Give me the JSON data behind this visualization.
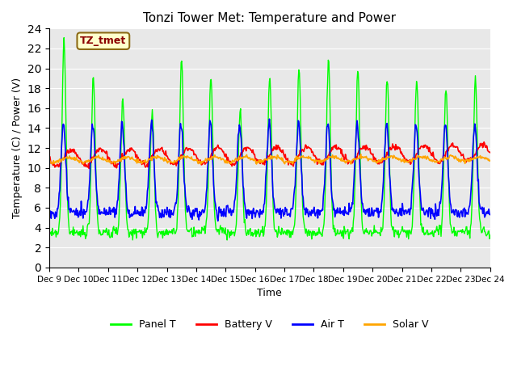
{
  "title": "Tonzi Tower Met: Temperature and Power",
  "xlabel": "Time",
  "ylabel": "Temperature (C) / Power (V)",
  "ylim": [
    0,
    24
  ],
  "yticks": [
    0,
    2,
    4,
    6,
    8,
    10,
    12,
    14,
    16,
    18,
    20,
    22,
    24
  ],
  "xtick_labels": [
    "Dec 9",
    "Dec 10",
    "Dec 11",
    "Dec 12",
    "Dec 13",
    "Dec 14",
    "Dec 15",
    "Dec 16",
    "Dec 17",
    "Dec 18",
    "Dec 19",
    "Dec 20",
    "Dec 21",
    "Dec 22",
    "Dec 23",
    "Dec 24"
  ],
  "annotation_text": "TZ_tmet",
  "annotation_color": "#8B0000",
  "annotation_bg": "#FFFFCC",
  "annotation_edge": "#8B6914",
  "bg_color": "#E8E8E8",
  "panel_t_color": "#00FF00",
  "battery_v_color": "#FF0000",
  "air_t_color": "#0000FF",
  "solar_v_color": "#FFA500",
  "legend_labels": [
    "Panel T",
    "Battery V",
    "Air T",
    "Solar V"
  ],
  "n_days": 15,
  "pts_per_day": 48
}
